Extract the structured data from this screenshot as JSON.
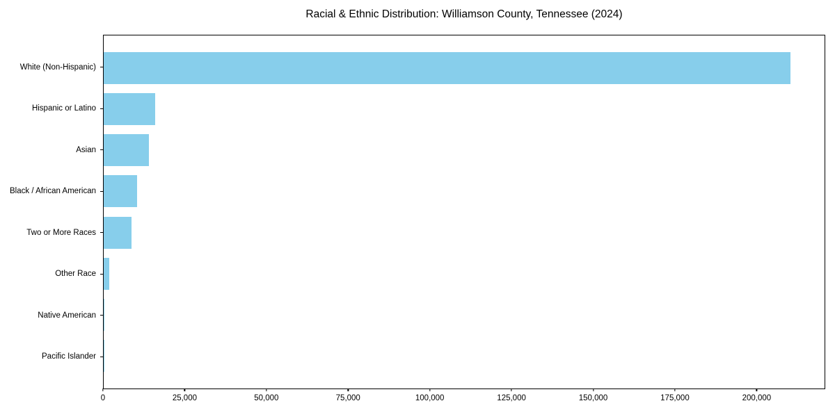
{
  "figure": {
    "background_color": "#ffffff",
    "text_color": "#000000"
  },
  "chart_data": {
    "type": "bar",
    "orientation": "horizontal",
    "title": "Racial & Ethnic Distribution: Williamson County, Tennessee (2024)",
    "xlabel": "",
    "ylabel": "",
    "categories": [
      "White (Non-Hispanic)",
      "Hispanic or Latino",
      "Asian",
      "Black / African American",
      "Two or More Races",
      "Other Race",
      "Native American",
      "Pacific Islander"
    ],
    "values": [
      210500,
      15700,
      13850,
      10300,
      8600,
      1800,
      150,
      60
    ],
    "xlim": [
      0,
      221000
    ],
    "x_ticks": [
      0,
      25000,
      50000,
      75000,
      100000,
      125000,
      150000,
      175000,
      200000
    ],
    "x_tick_labels": [
      "0",
      "25,000",
      "50,000",
      "75,000",
      "100,000",
      "125,000",
      "150,000",
      "175,000",
      "200,000"
    ],
    "bar_color": "#87CEEB",
    "axis_color": "#000000",
    "grid": false,
    "legend": null
  }
}
